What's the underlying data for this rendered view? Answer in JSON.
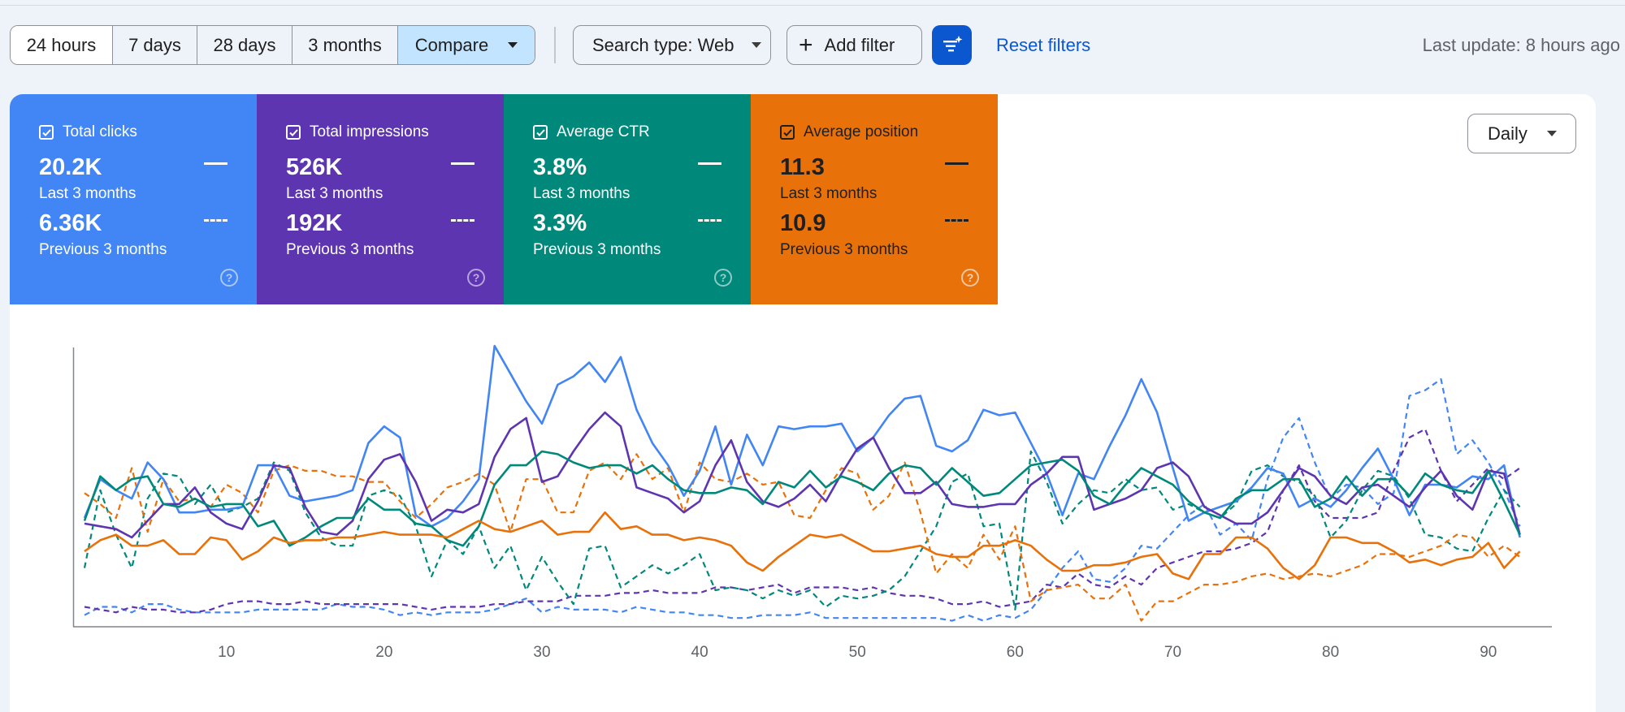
{
  "toolbar": {
    "ranges": [
      "24 hours",
      "7 days",
      "28 days",
      "3 months"
    ],
    "compare_label": "Compare",
    "search_type_label": "Search type: Web",
    "add_filter_label": "Add filter",
    "reset_filters_label": "Reset filters",
    "last_update": "Last update: 8 hours ago"
  },
  "granularity": "Daily",
  "metrics": [
    {
      "label": "Total clicks",
      "value": "20.2K",
      "period": "Last 3 months",
      "compare_value": "6.36K",
      "compare_period": "Previous 3 months",
      "color": "#4285f4"
    },
    {
      "label": "Total impressions",
      "value": "526K",
      "period": "Last 3 months",
      "compare_value": "192K",
      "compare_period": "Previous 3 months",
      "color": "#5e35b1"
    },
    {
      "label": "Average CTR",
      "value": "3.8%",
      "period": "Last 3 months",
      "compare_value": "3.3%",
      "compare_period": "Previous 3 months",
      "color": "#00897b"
    },
    {
      "label": "Average position",
      "value": "11.3",
      "period": "Last 3 months",
      "compare_value": "10.9",
      "compare_period": "Previous 3 months",
      "color": "#e8710a"
    }
  ],
  "chart_data": {
    "type": "line",
    "x_ticks": [
      10,
      20,
      30,
      40,
      50,
      60,
      70,
      80,
      90
    ],
    "xlim": [
      1,
      93
    ],
    "ylim": [
      0,
      100
    ],
    "grid": false,
    "series": [
      {
        "metric": "Total clicks",
        "period": "Last 3 months",
        "style": "solid",
        "color": "#4285f4",
        "values": [
          38,
          52,
          48,
          45,
          58,
          52,
          40,
          40,
          41,
          41,
          42,
          57,
          57,
          46,
          44,
          45,
          46,
          48,
          65,
          71,
          67,
          39,
          35,
          38,
          44,
          52,
          100,
          90,
          80,
          72,
          86,
          89,
          94,
          87,
          96,
          77,
          65,
          57,
          46,
          55,
          71,
          50,
          68,
          57,
          71,
          70,
          71,
          71,
          72,
          62,
          67,
          75,
          81,
          82,
          64,
          62,
          66,
          77,
          75,
          76,
          65,
          54,
          39,
          54,
          52,
          64,
          75,
          88,
          76,
          56,
          37,
          40,
          42,
          44,
          49,
          56,
          54,
          42,
          45,
          42,
          48,
          56,
          63,
          52,
          39,
          50,
          50,
          49,
          53,
          52,
          57,
          31
        ]
      },
      {
        "metric": "Total impressions",
        "period": "Last 3 months",
        "style": "solid",
        "color": "#5e35b1",
        "values": [
          36,
          35,
          34,
          31,
          37,
          43,
          43,
          49,
          40,
          36,
          34,
          44,
          57,
          56,
          42,
          33,
          32,
          37,
          52,
          59,
          61,
          51,
          37,
          41,
          40,
          43,
          60,
          70,
          74,
          51,
          53,
          62,
          70,
          76,
          71,
          49,
          47,
          45,
          40,
          44,
          57,
          66,
          51,
          44,
          42,
          45,
          50,
          44,
          54,
          63,
          67,
          56,
          47,
          47,
          51,
          43,
          42,
          42,
          43,
          43,
          50,
          54,
          60,
          60,
          41,
          43,
          45,
          48,
          56,
          58,
          53,
          42,
          39,
          36,
          36,
          40,
          48,
          56,
          53,
          46,
          43,
          49,
          50,
          46,
          42,
          49,
          55,
          46,
          41,
          55,
          54,
          32
        ]
      },
      {
        "metric": "Average CTR",
        "period": "Last 3 months",
        "style": "solid",
        "color": "#00897b",
        "values": [
          37,
          53,
          48,
          52,
          53,
          43,
          42,
          45,
          42,
          43,
          43,
          35,
          37,
          28,
          31,
          35,
          38,
          38,
          45,
          41,
          41,
          36,
          35,
          30,
          28,
          35,
          50,
          57,
          57,
          62,
          61,
          58,
          56,
          57,
          57,
          54,
          57,
          52,
          48,
          47,
          47,
          49,
          48,
          43,
          51,
          49,
          55,
          49,
          53,
          51,
          48,
          54,
          57,
          56,
          50,
          56,
          51,
          46,
          47,
          52,
          57,
          58,
          59,
          55,
          46,
          43,
          50,
          56,
          53,
          50,
          44,
          40,
          38,
          45,
          48,
          48,
          52,
          52,
          42,
          45,
          53,
          46,
          52,
          52,
          46,
          54,
          50,
          48,
          47,
          55,
          44,
          32
        ]
      },
      {
        "metric": "Average position",
        "period": "Last 3 months",
        "style": "solid",
        "color": "#e8710a",
        "values": [
          26,
          30,
          32,
          28,
          28,
          30,
          25,
          25,
          31,
          30,
          23,
          26,
          31,
          29,
          30,
          30,
          31,
          31,
          32,
          33,
          32,
          32,
          32,
          31,
          34,
          37,
          34,
          33,
          35,
          37,
          32,
          33,
          33,
          40,
          34,
          35,
          32,
          32,
          30,
          31,
          30,
          28,
          22,
          19,
          24,
          28,
          32,
          31,
          32,
          29,
          26,
          26,
          27,
          28,
          25,
          24,
          24,
          28,
          28,
          30,
          28,
          23,
          19,
          19,
          21,
          21,
          22,
          24,
          25,
          18,
          16,
          25,
          25,
          31,
          31,
          27,
          20,
          16,
          21,
          31,
          31,
          29,
          29,
          26,
          22,
          23,
          21,
          23,
          24,
          29,
          20,
          26
        ]
      },
      {
        "metric": "Total clicks",
        "period": "Previous 3 months",
        "style": "dashed",
        "color": "#4285f4",
        "values": [
          3,
          6,
          6,
          4,
          7,
          7,
          5,
          4,
          4,
          4,
          4,
          5,
          5,
          5,
          5,
          5,
          7,
          6,
          6,
          5,
          3,
          4,
          3,
          4,
          4,
          4,
          5,
          7,
          9,
          4,
          6,
          5,
          5,
          5,
          4,
          6,
          5,
          4,
          4,
          3,
          3,
          2,
          2,
          3,
          3,
          3,
          4,
          2,
          2,
          2,
          2,
          2,
          2,
          2,
          2,
          1,
          3,
          1,
          3,
          2,
          5,
          12,
          20,
          26,
          16,
          15,
          20,
          28,
          27,
          33,
          39,
          43,
          32,
          36,
          30,
          52,
          67,
          74,
          58,
          45,
          50,
          49,
          43,
          47,
          82,
          84,
          88,
          61,
          66,
          58,
          48,
          35
        ]
      },
      {
        "metric": "Total impressions",
        "period": "Previous 3 months",
        "style": "dashed",
        "color": "#5e35b1",
        "values": [
          6,
          5,
          4,
          6,
          5,
          5,
          4,
          4,
          5,
          7,
          8,
          8,
          7,
          7,
          8,
          7,
          7,
          7,
          7,
          7,
          7,
          6,
          5,
          6,
          6,
          6,
          7,
          7,
          8,
          8,
          8,
          10,
          10,
          10,
          11,
          11,
          12,
          11,
          11,
          11,
          13,
          13,
          12,
          13,
          14,
          11,
          13,
          13,
          13,
          12,
          13,
          11,
          10,
          10,
          9,
          7,
          7,
          8,
          6,
          7,
          8,
          14,
          13,
          18,
          14,
          13,
          17,
          14,
          20,
          22,
          24,
          26,
          26,
          27,
          29,
          33,
          48,
          57,
          44,
          38,
          38,
          38,
          40,
          55,
          67,
          70,
          55,
          44,
          50,
          56,
          52,
          56
        ]
      },
      {
        "metric": "Average CTR",
        "period": "Previous 3 months",
        "style": "dashed",
        "color": "#00897b",
        "values": [
          20,
          48,
          32,
          20,
          45,
          54,
          53,
          43,
          50,
          40,
          42,
          45,
          58,
          55,
          40,
          31,
          28,
          28,
          46,
          48,
          46,
          35,
          17,
          30,
          25,
          35,
          20,
          28,
          12,
          24,
          15,
          7,
          27,
          28,
          13,
          17,
          21,
          18,
          21,
          25,
          12,
          13,
          12,
          9,
          12,
          10,
          12,
          6,
          10,
          9,
          10,
          12,
          17,
          26,
          35,
          51,
          54,
          35,
          36,
          5,
          62,
          51,
          36,
          43,
          48,
          47,
          52,
          48,
          49,
          41,
          43,
          40,
          38,
          43,
          55,
          57,
          53,
          51,
          46,
          31,
          37,
          48,
          55,
          53,
          45,
          32,
          31,
          27,
          26,
          38,
          48,
          42
        ]
      },
      {
        "metric": "Average position",
        "period": "Previous 3 months",
        "style": "dashed",
        "color": "#e8710a",
        "values": [
          47,
          43,
          38,
          56,
          33,
          52,
          44,
          45,
          42,
          50,
          47,
          40,
          55,
          57,
          55,
          55,
          53,
          53,
          51,
          51,
          44,
          38,
          43,
          49,
          51,
          54,
          50,
          33,
          52,
          52,
          40,
          40,
          55,
          58,
          52,
          61,
          52,
          56,
          40,
          58,
          52,
          51,
          54,
          50,
          51,
          39,
          38,
          48,
          56,
          54,
          41,
          46,
          58,
          40,
          18,
          25,
          20,
          32,
          23,
          35,
          8,
          12,
          13,
          14,
          9,
          9,
          14,
          1,
          8,
          8,
          11,
          14,
          14,
          15,
          17,
          18,
          16,
          17,
          18,
          17,
          19,
          21,
          25,
          25,
          24,
          26,
          28,
          32,
          31,
          24,
          28,
          24
        ]
      }
    ]
  }
}
